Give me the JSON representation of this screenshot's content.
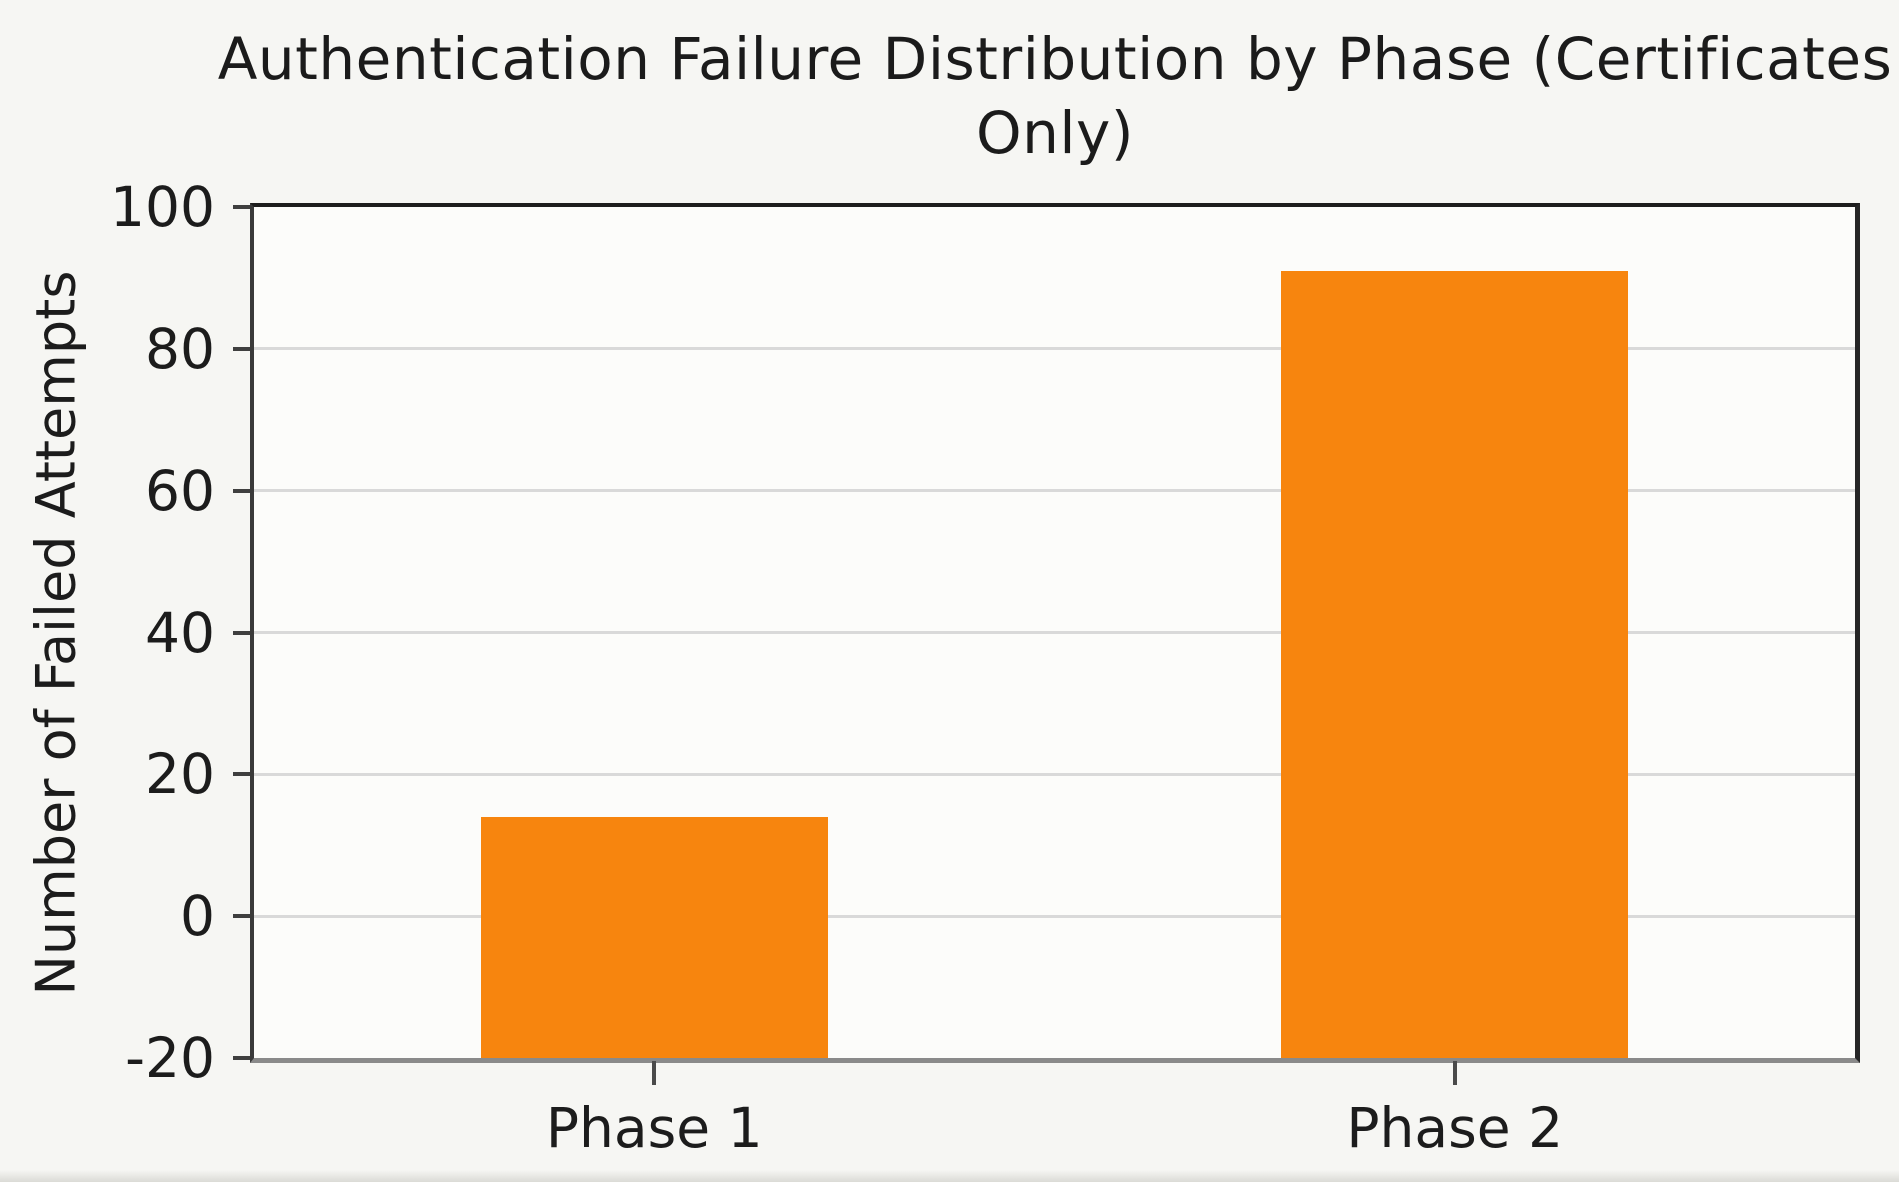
{
  "chart_data": {
    "type": "bar",
    "title": "Authentication Failure Distribution by Phase (Certificates Only)",
    "title_lines": [
      "Authentication Failure Distribution by Phase (Certificates",
      "Only)"
    ],
    "categories": [
      "Phase 1",
      "Phase 2"
    ],
    "values": [
      14,
      91
    ],
    "xlabel": "",
    "ylabel": "Number of Failed Attempts",
    "ylim": [
      -20,
      100
    ],
    "yticks": [
      100,
      80,
      60,
      40,
      20,
      0,
      -20
    ],
    "grid": "horizontal-only",
    "legend": "none",
    "bar_color": "#f7850e",
    "bars_drawn_from": "axis-bottom"
  },
  "colors": {
    "bar": "#f7850e",
    "gridline": "#d9d9d9",
    "text": "#1c1c1c",
    "spine_top": "#1d1d1d",
    "spine_left": "#3a3a3a",
    "spine_right": "#262626",
    "spine_bottom": "#8a8a8a",
    "tick_mark": "#3f3f3f",
    "figure_background": "#f6f6f3",
    "plot_background": "#fcfcfa"
  }
}
